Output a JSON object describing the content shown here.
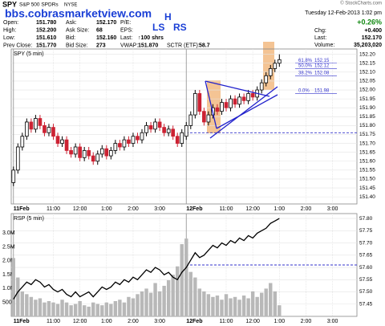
{
  "header": {
    "symbol": "SPY",
    "description": "S&P 500 SPDRs",
    "exchange": "NYSE",
    "watermark": "bbs.cobrasmarketview.com",
    "copyright": "© StockCharts.com",
    "annotations": [
      "LS",
      "H",
      "RS"
    ],
    "date": "Tuesday 12-Feb-2013 1:02 pm",
    "change_pct": "+0.26%",
    "quote": [
      {
        "label": "Open:",
        "value": "151.780"
      },
      {
        "label": "High:",
        "value": "152.200"
      },
      {
        "label": "Low:",
        "value": "151.610"
      },
      {
        "label": "Prev Close:",
        "value": "151.770"
      },
      {
        "label": "Ask:",
        "value": "152.170"
      },
      {
        "label": "Ask Size:",
        "value": "68"
      },
      {
        "label": "Bid:",
        "value": "152.160"
      },
      {
        "label": "Bid Size:",
        "value": "273"
      },
      {
        "label": "P/E:"
      },
      {
        "label": "EPS:"
      },
      {
        "label": "Last:",
        "value": "↑100 shrs"
      },
      {
        "label": "VWAP:",
        "value": "151.870"
      },
      {
        "label": "SCTR (ETF):",
        "value": "58.7"
      }
    ],
    "right": [
      {
        "label": "Chg:",
        "value": "+0.400"
      },
      {
        "label": "Last:",
        "value": "152.170"
      },
      {
        "label": "Volume:",
        "value": "35,203,020"
      }
    ]
  },
  "chart_data": [
    {
      "type": "candlestick",
      "title": "SPY (5 min)",
      "categories": [
        "11Feb",
        null,
        null,
        null,
        null,
        null,
        null,
        null,
        null,
        "11:00",
        null,
        null,
        null,
        null,
        null,
        "12:00",
        null,
        null,
        null,
        null,
        null,
        "1:00",
        null,
        null,
        null,
        null,
        null,
        "2:00",
        null,
        null,
        null,
        null,
        null,
        "3:00",
        null,
        null,
        null,
        null,
        null,
        "12Feb",
        null,
        null,
        null,
        null,
        null,
        null,
        null,
        null,
        "11:00",
        null,
        null,
        null,
        null,
        null,
        "12:00",
        null,
        null,
        null,
        null,
        null,
        "1:00",
        null,
        null,
        null,
        null,
        null,
        "2:00",
        null,
        null,
        null,
        null,
        null,
        "3:00",
        null,
        null,
        null,
        null,
        null
      ],
      "open": [
        151.48,
        151.55,
        151.68,
        151.74,
        151.82,
        151.78,
        151.84,
        151.8,
        151.76,
        151.79,
        151.74,
        151.7,
        151.72,
        151.66,
        151.64,
        151.68,
        151.62,
        151.66,
        151.63,
        151.6,
        151.64,
        151.67,
        151.63,
        151.66,
        151.7,
        151.68,
        151.72,
        151.7,
        151.74,
        151.72,
        151.76,
        151.8,
        151.78,
        151.82,
        151.79,
        151.76,
        151.78,
        151.74,
        151.7,
        151.74,
        151.8,
        151.86,
        151.98,
        151.88,
        151.82,
        151.86,
        151.9,
        151.88,
        151.93,
        151.9,
        151.95,
        151.92,
        151.96,
        151.94,
        151.98,
        151.96,
        152.0,
        152.04,
        152.08,
        152.12,
        152.15,
        null,
        null,
        null,
        null,
        null,
        null,
        null,
        null,
        null,
        null,
        null,
        null,
        null,
        null,
        null,
        null,
        null
      ],
      "high": [
        151.57,
        151.7,
        151.76,
        151.84,
        151.84,
        151.86,
        151.86,
        151.82,
        151.81,
        151.81,
        151.76,
        151.74,
        151.74,
        151.68,
        151.7,
        151.7,
        151.68,
        151.68,
        151.65,
        151.66,
        151.69,
        151.69,
        151.68,
        151.72,
        151.72,
        151.74,
        151.74,
        151.76,
        151.76,
        151.78,
        151.82,
        151.82,
        151.84,
        151.84,
        151.81,
        151.8,
        151.8,
        151.76,
        151.78,
        151.82,
        151.88,
        152.0,
        152.0,
        151.9,
        151.88,
        151.92,
        151.92,
        151.95,
        151.95,
        151.97,
        151.97,
        151.98,
        151.98,
        152.0,
        152.0,
        152.02,
        152.06,
        152.1,
        152.14,
        152.17,
        152.2,
        null,
        null,
        null,
        null,
        null,
        null,
        null,
        null,
        null,
        null,
        null,
        null,
        null,
        null,
        null,
        null,
        null
      ],
      "low": [
        151.46,
        151.53,
        151.66,
        151.72,
        151.76,
        151.76,
        151.78,
        151.74,
        151.74,
        151.72,
        151.68,
        151.68,
        151.64,
        151.62,
        151.62,
        151.6,
        151.6,
        151.61,
        151.58,
        151.58,
        151.62,
        151.61,
        151.61,
        151.64,
        151.66,
        151.66,
        151.68,
        151.68,
        151.7,
        151.7,
        151.74,
        151.76,
        151.76,
        151.77,
        151.74,
        151.74,
        151.72,
        151.68,
        151.68,
        151.72,
        151.78,
        151.84,
        151.86,
        151.8,
        151.8,
        151.84,
        151.86,
        151.86,
        151.88,
        151.88,
        151.9,
        151.9,
        151.92,
        151.92,
        151.94,
        151.94,
        151.98,
        152.02,
        152.06,
        152.1,
        152.13,
        null,
        null,
        null,
        null,
        null,
        null,
        null,
        null,
        null,
        null,
        null,
        null,
        null,
        null,
        null,
        null,
        null
      ],
      "close": [
        151.55,
        151.68,
        151.74,
        151.82,
        151.78,
        151.84,
        151.8,
        151.76,
        151.79,
        151.74,
        151.7,
        151.72,
        151.66,
        151.64,
        151.68,
        151.62,
        151.66,
        151.63,
        151.6,
        151.64,
        151.67,
        151.63,
        151.66,
        151.7,
        151.68,
        151.72,
        151.7,
        151.74,
        151.72,
        151.76,
        151.8,
        151.78,
        151.82,
        151.79,
        151.76,
        151.78,
        151.74,
        151.7,
        151.76,
        151.8,
        151.86,
        151.98,
        151.88,
        151.82,
        151.86,
        151.9,
        151.88,
        151.93,
        151.9,
        151.95,
        151.92,
        151.96,
        151.94,
        151.98,
        151.96,
        152.0,
        152.04,
        152.08,
        152.12,
        152.15,
        152.17,
        null,
        null,
        null,
        null,
        null,
        null,
        null,
        null,
        null,
        null,
        null,
        null,
        null,
        null,
        null,
        null,
        null
      ],
      "colors": {
        "up": "#000000",
        "down": "#cc2233"
      },
      "ylim": [
        151.36,
        152.23
      ],
      "yticks": [
        {
          "value": 151.4,
          "label": "151.40"
        },
        151.45,
        {
          "value": 151.5,
          "label": "151.50"
        },
        151.55,
        {
          "value": 151.6,
          "label": "151.60"
        },
        151.65,
        {
          "value": 151.7,
          "label": "151.70"
        },
        151.75,
        {
          "value": 151.8,
          "label": "151.80"
        },
        151.85,
        {
          "value": 151.9,
          "label": "151.90"
        },
        151.95,
        {
          "value": 152.0,
          "label": "152.00"
        },
        152.05,
        {
          "value": 152.1,
          "label": "152.10"
        },
        152.15,
        {
          "value": 152.2,
          "label": "152.20"
        }
      ],
      "grid": true,
      "reference_line": 151.76,
      "reference_color": "#3333cc",
      "fib_levels": [
        {
          "label": "61.8%",
          "value": 152.15
        },
        {
          "label": "50.0%",
          "value": 152.12
        },
        {
          "label": "38.2%",
          "value": 152.08
        },
        {
          "label": "0.0%",
          "value": 151.98
        }
      ]
    },
    {
      "type": "line",
      "title": "RSP (5 min)",
      "categories": [
        "11Feb",
        null,
        null,
        null,
        null,
        null,
        null,
        null,
        null,
        "11:00",
        null,
        null,
        null,
        null,
        null,
        "12:00",
        null,
        null,
        null,
        null,
        null,
        "1:00",
        null,
        null,
        null,
        null,
        null,
        "2:00",
        null,
        null,
        null,
        null,
        null,
        "3:00",
        null,
        null,
        null,
        null,
        null,
        "12Feb",
        null,
        null,
        null,
        null,
        null,
        null,
        null,
        null,
        "11:00",
        null,
        null,
        null,
        null,
        null,
        "12:00",
        null,
        null,
        null,
        null,
        null,
        "1:00",
        null,
        null,
        null,
        null,
        null,
        "2:00",
        null,
        null,
        null,
        null,
        null,
        "3:00",
        null,
        null,
        null,
        null,
        null
      ],
      "close": [
        57.47,
        57.5,
        57.52,
        57.54,
        57.53,
        57.55,
        57.54,
        57.52,
        57.53,
        57.51,
        57.5,
        57.51,
        57.49,
        57.48,
        57.5,
        57.48,
        57.49,
        57.5,
        57.48,
        57.5,
        57.52,
        57.51,
        57.52,
        57.54,
        57.53,
        57.55,
        57.54,
        57.56,
        57.55,
        57.57,
        57.59,
        57.58,
        57.6,
        57.59,
        57.57,
        57.58,
        57.56,
        57.55,
        57.58,
        57.6,
        57.63,
        57.66,
        57.64,
        57.65,
        57.67,
        57.69,
        57.68,
        57.7,
        57.69,
        57.71,
        57.7,
        57.72,
        57.71,
        57.73,
        57.72,
        57.74,
        57.75,
        57.76,
        57.78,
        57.79,
        57.8,
        null,
        null,
        null,
        null,
        null,
        null,
        null,
        null,
        null,
        null,
        null,
        null,
        null,
        null,
        null,
        null,
        null
      ],
      "volume": [
        2100000,
        1400000,
        900000,
        800000,
        700000,
        600000,
        650000,
        500000,
        550000,
        500000,
        450000,
        600000,
        500000,
        400000,
        450000,
        550000,
        400000,
        350000,
        500000,
        450000,
        400000,
        500000,
        450000,
        550000,
        600000,
        500000,
        700000,
        650000,
        800000,
        900000,
        1000000,
        850000,
        1200000,
        900000,
        1100000,
        1300000,
        1500000,
        1800000,
        2600000,
        2800000,
        1600000,
        1400000,
        1000000,
        900000,
        800000,
        700000,
        750000,
        600000,
        800000,
        650000,
        700000,
        600000,
        750000,
        650000,
        900000,
        700000,
        850000,
        1000000,
        1200000,
        900000,
        400000,
        null,
        null,
        null,
        null,
        null,
        null,
        null,
        null,
        null,
        null,
        null,
        null,
        null,
        null,
        null,
        null,
        null
      ],
      "color": "#000000",
      "volume_color": "#b8b8b8",
      "ylim": [
        57.4,
        57.82
      ],
      "yticks": [
        57.45,
        {
          "value": 57.5,
          "label": "57.50"
        },
        57.55,
        {
          "value": 57.6,
          "label": "57.60"
        },
        57.65,
        {
          "value": 57.7,
          "label": "57.70"
        },
        57.75,
        {
          "value": 57.8,
          "label": "57.80"
        }
      ],
      "y2lim": [
        0,
        3700000
      ],
      "y2ticks": [
        {
          "value": 500000,
          "label": "500K"
        },
        {
          "value": 1000000,
          "label": "1.0M"
        },
        {
          "value": 1500000,
          "label": "1.5M"
        },
        {
          "value": 2000000,
          "label": "2.0M"
        },
        {
          "value": 2500000,
          "label": "2.5M"
        },
        {
          "value": 3000000,
          "label": "3.0M"
        }
      ],
      "grid": true,
      "reference_line": 57.61,
      "reference_color": "#3333cc"
    }
  ]
}
